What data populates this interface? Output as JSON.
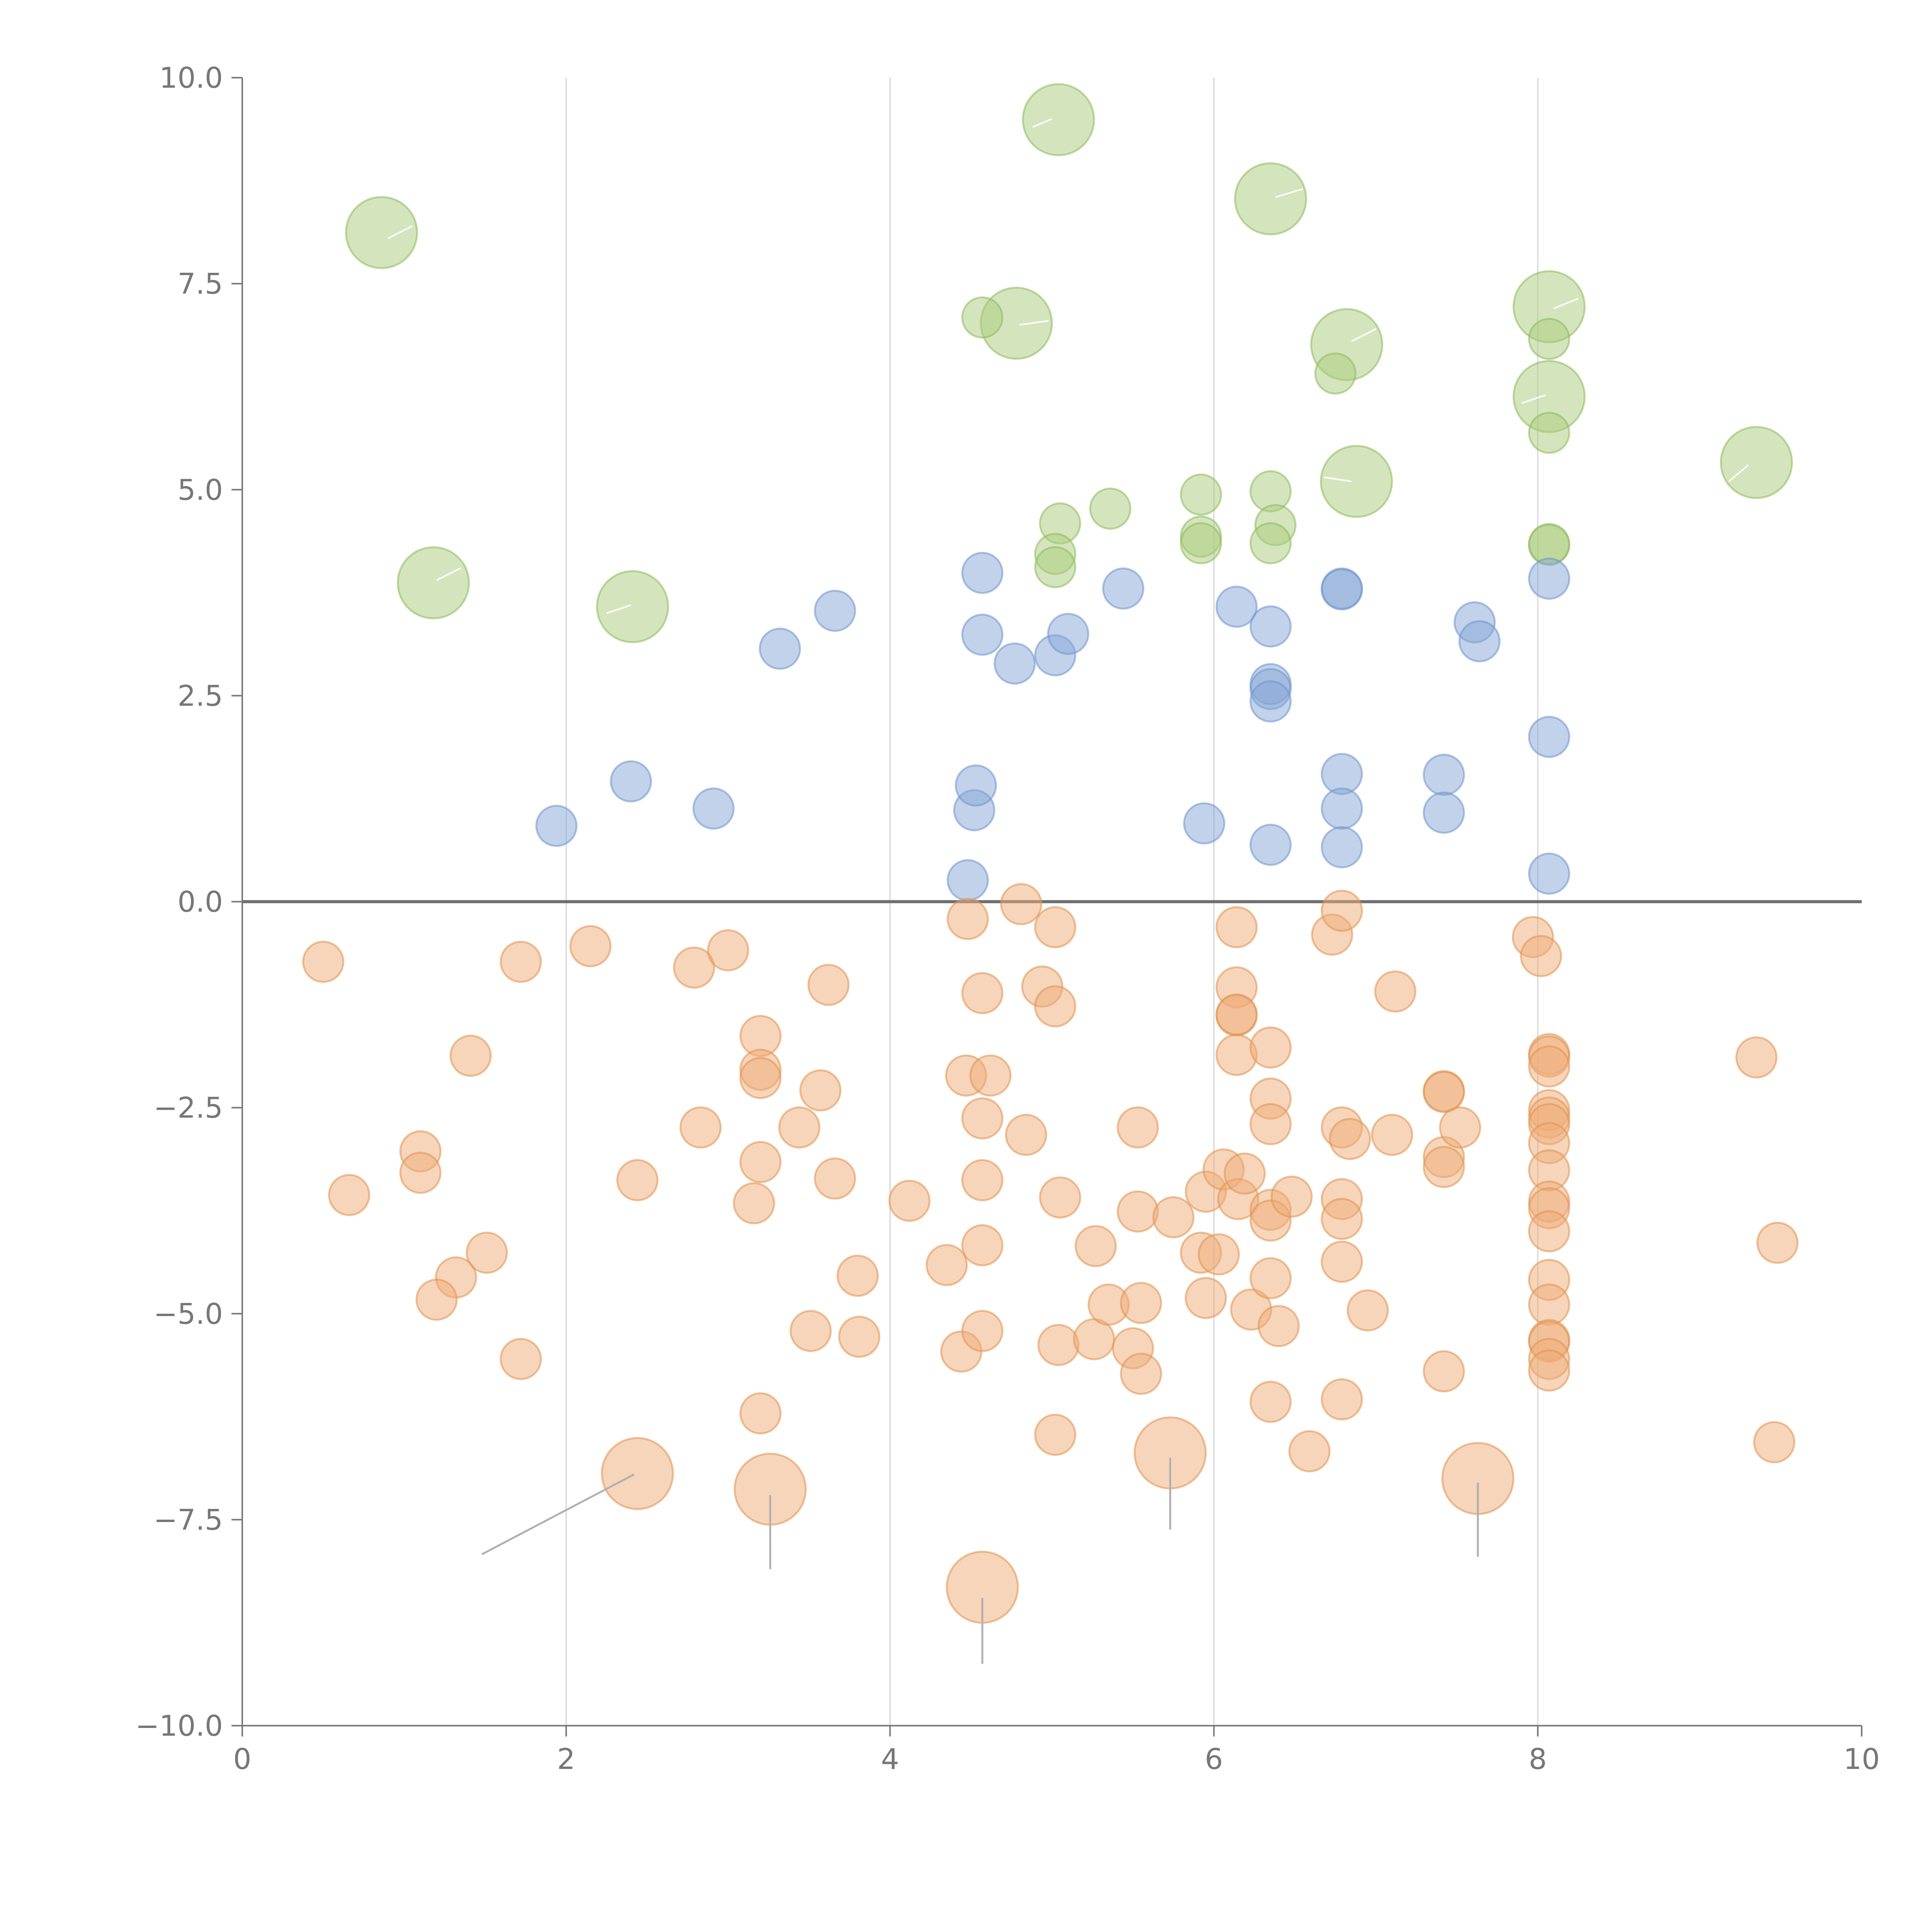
{
  "chart_data": {
    "type": "scatter",
    "title": "",
    "xlabel": "",
    "ylabel": "",
    "xlim": [
      0,
      10
    ],
    "ylim": [
      -10,
      10
    ],
    "grid": "vertical-major",
    "reference_line_y": 0,
    "x_ticks": [
      {
        "value": 0,
        "label": "0"
      },
      {
        "value": 2,
        "label": "2"
      },
      {
        "value": 4,
        "label": "4"
      },
      {
        "value": 6,
        "label": "6"
      },
      {
        "value": 8,
        "label": "8"
      },
      {
        "value": 10,
        "label": "10"
      }
    ],
    "y_ticks": [
      {
        "value": 10,
        "label": "10.0"
      },
      {
        "value": 7.5,
        "label": "7.5"
      },
      {
        "value": 5,
        "label": "5.0"
      },
      {
        "value": 2.5,
        "label": "2.5"
      },
      {
        "value": 0,
        "label": "0.0"
      },
      {
        "value": -2.5,
        "label": "−2.5"
      },
      {
        "value": -5,
        "label": "−5.0"
      },
      {
        "value": -7.5,
        "label": "−7.5"
      },
      {
        "value": -10,
        "label": "−10.0"
      }
    ],
    "series": [
      {
        "name": "green",
        "color": "#a9cc7c",
        "stroke": "#8dba5c",
        "points": [
          [
            4.57,
            7.09
          ],
          [
            5.05,
            4.59
          ],
          [
            5.02,
            4.22
          ],
          [
            5.02,
            4.06
          ],
          [
            5.36,
            4.77
          ],
          [
            5.92,
            4.94
          ],
          [
            5.92,
            4.43
          ],
          [
            5.92,
            4.35
          ],
          [
            6.35,
            4.98
          ],
          [
            6.38,
            4.57
          ],
          [
            6.35,
            4.35
          ],
          [
            6.75,
            6.41
          ],
          [
            8.07,
            6.83
          ],
          [
            8.07,
            5.69
          ],
          [
            8.07,
            4.33
          ],
          [
            8.07,
            4.34
          ]
        ],
        "large_points": [
          [
            0.86,
            8.12
          ],
          [
            5.04,
            9.49
          ],
          [
            6.35,
            8.53
          ],
          [
            4.78,
            7.02
          ],
          [
            8.07,
            7.22
          ],
          [
            6.82,
            6.76
          ],
          [
            8.07,
            6.13
          ],
          [
            9.35,
            5.33
          ],
          [
            6.88,
            5.1
          ],
          [
            1.18,
            3.87
          ],
          [
            2.41,
            3.58
          ]
        ]
      },
      {
        "name": "blue",
        "color": "#86a6d6",
        "stroke": "#6f93cc",
        "points": [
          [
            1.94,
            0.92
          ],
          [
            2.4,
            1.46
          ],
          [
            2.91,
            1.13
          ],
          [
            3.32,
            3.07
          ],
          [
            3.66,
            3.53
          ],
          [
            4.48,
            0.26
          ],
          [
            4.52,
            1.11
          ],
          [
            4.53,
            1.41
          ],
          [
            4.57,
            3.99
          ],
          [
            4.57,
            3.24
          ],
          [
            4.77,
            2.89
          ],
          [
            5.02,
            2.99
          ],
          [
            5.1,
            3.25
          ],
          [
            5.44,
            3.8
          ],
          [
            5.94,
            0.95
          ],
          [
            6.14,
            3.58
          ],
          [
            6.35,
            3.34
          ],
          [
            6.35,
            2.64
          ],
          [
            6.35,
            2.58
          ],
          [
            6.35,
            2.43
          ],
          [
            6.35,
            0.69
          ],
          [
            6.79,
            3.8
          ],
          [
            6.79,
            3.79
          ],
          [
            6.79,
            1.55
          ],
          [
            6.79,
            1.13
          ],
          [
            6.79,
            0.66
          ],
          [
            7.42,
            1.54
          ],
          [
            7.42,
            1.08
          ],
          [
            7.61,
            3.39
          ],
          [
            7.64,
            3.16
          ],
          [
            8.07,
            3.92
          ],
          [
            8.07,
            2.0
          ],
          [
            8.07,
            0.34
          ]
        ]
      },
      {
        "name": "orange",
        "color": "#eeab78",
        "stroke": "#e0914f",
        "points": [
          [
            0.5,
            -0.73
          ],
          [
            0.66,
            -3.56
          ],
          [
            1.1,
            -3.03
          ],
          [
            1.1,
            -3.29
          ],
          [
            1.32,
            -4.56
          ],
          [
            1.41,
            -1.87
          ],
          [
            1.2,
            -4.83
          ],
          [
            1.51,
            -4.26
          ],
          [
            1.72,
            -0.73
          ],
          [
            1.72,
            -5.55
          ],
          [
            2.15,
            -0.54
          ],
          [
            2.44,
            -3.38
          ],
          [
            2.79,
            -0.8
          ],
          [
            2.83,
            -2.74
          ],
          [
            3.0,
            -0.59
          ],
          [
            3.16,
            -3.66
          ],
          [
            3.2,
            -1.63
          ],
          [
            3.2,
            -2.04
          ],
          [
            3.2,
            -2.14
          ],
          [
            3.2,
            -3.16
          ],
          [
            3.2,
            -6.21
          ],
          [
            3.44,
            -2.74
          ],
          [
            3.51,
            -5.21
          ],
          [
            3.57,
            -2.29
          ],
          [
            3.62,
            -1.01
          ],
          [
            3.66,
            -3.36
          ],
          [
            3.8,
            -4.54
          ],
          [
            3.81,
            -5.28
          ],
          [
            4.12,
            -3.63
          ],
          [
            4.35,
            -4.41
          ],
          [
            4.44,
            -5.46
          ],
          [
            4.47,
            -2.11
          ],
          [
            4.48,
            -0.21
          ],
          [
            4.57,
            -1.11
          ],
          [
            4.57,
            -2.63
          ],
          [
            4.57,
            -3.38
          ],
          [
            4.57,
            -4.17
          ],
          [
            4.57,
            -5.21
          ],
          [
            4.62,
            -2.11
          ],
          [
            4.81,
            -0.03
          ],
          [
            4.84,
            -2.83
          ],
          [
            4.94,
            -1.03
          ],
          [
            5.02,
            -0.31
          ],
          [
            5.02,
            -1.27
          ],
          [
            5.02,
            -6.47
          ],
          [
            5.05,
            -3.59
          ],
          [
            5.04,
            -5.38
          ],
          [
            5.27,
            -4.18
          ],
          [
            5.26,
            -5.31
          ],
          [
            5.35,
            -4.89
          ],
          [
            5.53,
            -2.74
          ],
          [
            5.53,
            -3.76
          ],
          [
            5.55,
            -4.87
          ],
          [
            5.5,
            -5.42
          ],
          [
            5.55,
            -5.73
          ],
          [
            5.75,
            -3.83
          ],
          [
            5.92,
            -4.26
          ],
          [
            5.95,
            -3.52
          ],
          [
            5.95,
            -4.81
          ],
          [
            6.03,
            -4.28
          ],
          [
            6.06,
            -3.25
          ],
          [
            6.14,
            -0.31
          ],
          [
            6.14,
            -1.04
          ],
          [
            6.14,
            -1.38
          ],
          [
            6.14,
            -1.37
          ],
          [
            6.14,
            -1.86
          ],
          [
            6.15,
            -3.61
          ],
          [
            6.19,
            -3.3
          ],
          [
            6.23,
            -4.95
          ],
          [
            6.35,
            -1.77
          ],
          [
            6.35,
            -2.39
          ],
          [
            6.35,
            -2.7
          ],
          [
            6.35,
            -3.74
          ],
          [
            6.35,
            -3.87
          ],
          [
            6.35,
            -4.57
          ],
          [
            6.35,
            -6.07
          ],
          [
            6.4,
            -5.15
          ],
          [
            6.48,
            -3.58
          ],
          [
            6.59,
            -6.67
          ],
          [
            6.73,
            -0.4
          ],
          [
            6.79,
            -0.11
          ],
          [
            6.79,
            -2.74
          ],
          [
            6.79,
            -3.61
          ],
          [
            6.79,
            -3.85
          ],
          [
            6.79,
            -4.37
          ],
          [
            6.79,
            -6.04
          ],
          [
            6.84,
            -2.88
          ],
          [
            6.95,
            -4.96
          ],
          [
            7.1,
            -2.83
          ],
          [
            7.12,
            -1.09
          ],
          [
            7.42,
            -2.3
          ],
          [
            7.42,
            -3.1
          ],
          [
            7.42,
            -3.22
          ],
          [
            7.42,
            -5.7
          ],
          [
            7.42,
            -2.31
          ],
          [
            7.52,
            -2.74
          ],
          [
            7.97,
            -0.43
          ],
          [
            8.02,
            -0.66
          ],
          [
            8.07,
            -1.85
          ],
          [
            8.07,
            -1.88
          ],
          [
            8.07,
            -2.0
          ],
          [
            8.07,
            -2.53
          ],
          [
            8.07,
            -2.62
          ],
          [
            8.07,
            -2.7
          ],
          [
            8.07,
            -2.93
          ],
          [
            8.07,
            -3.26
          ],
          [
            8.07,
            -3.64
          ],
          [
            8.07,
            -3.72
          ],
          [
            8.07,
            -4.0
          ],
          [
            8.07,
            -4.59
          ],
          [
            8.07,
            -4.89
          ],
          [
            8.07,
            -5.32
          ],
          [
            8.07,
            -5.34
          ],
          [
            8.07,
            -5.55
          ],
          [
            8.07,
            -5.69
          ],
          [
            9.35,
            -1.89
          ],
          [
            9.48,
            -4.14
          ],
          [
            9.46,
            -6.56
          ]
        ],
        "large_points": [
          [
            2.44,
            -6.94
          ],
          [
            3.26,
            -7.13
          ],
          [
            4.57,
            -8.32
          ],
          [
            5.73,
            -6.69
          ],
          [
            7.63,
            -7.0
          ]
        ]
      }
    ],
    "label_leaders": [
      [
        [
          0.9,
          8.05
        ],
        [
          1.05,
          8.2
        ]
      ],
      [
        [
          5.0,
          9.5
        ],
        [
          4.88,
          9.4
        ]
      ],
      [
        [
          6.38,
          8.55
        ],
        [
          6.55,
          8.65
        ]
      ],
      [
        [
          4.8,
          7.0
        ],
        [
          4.98,
          7.05
        ]
      ],
      [
        [
          8.1,
          7.2
        ],
        [
          8.25,
          7.32
        ]
      ],
      [
        [
          6.85,
          6.8
        ],
        [
          7.0,
          6.95
        ]
      ],
      [
        [
          8.05,
          6.15
        ],
        [
          7.9,
          6.05
        ]
      ],
      [
        [
          9.3,
          5.3
        ],
        [
          9.18,
          5.1
        ]
      ],
      [
        [
          6.85,
          5.1
        ],
        [
          6.68,
          5.15
        ]
      ],
      [
        [
          1.2,
          3.9
        ],
        [
          1.35,
          4.05
        ]
      ],
      [
        [
          2.4,
          3.6
        ],
        [
          2.25,
          3.5
        ]
      ]
    ],
    "callout_leaders": [
      [
        [
          2.42,
          -6.95
        ],
        [
          1.48,
          -7.92
        ]
      ],
      [
        [
          3.26,
          -7.2
        ],
        [
          3.26,
          -8.1
        ]
      ],
      [
        [
          4.57,
          -8.45
        ],
        [
          4.57,
          -9.25
        ]
      ],
      [
        [
          5.73,
          -6.75
        ],
        [
          5.73,
          -7.62
        ]
      ],
      [
        [
          7.63,
          -7.05
        ],
        [
          7.63,
          -7.95
        ]
      ]
    ]
  }
}
